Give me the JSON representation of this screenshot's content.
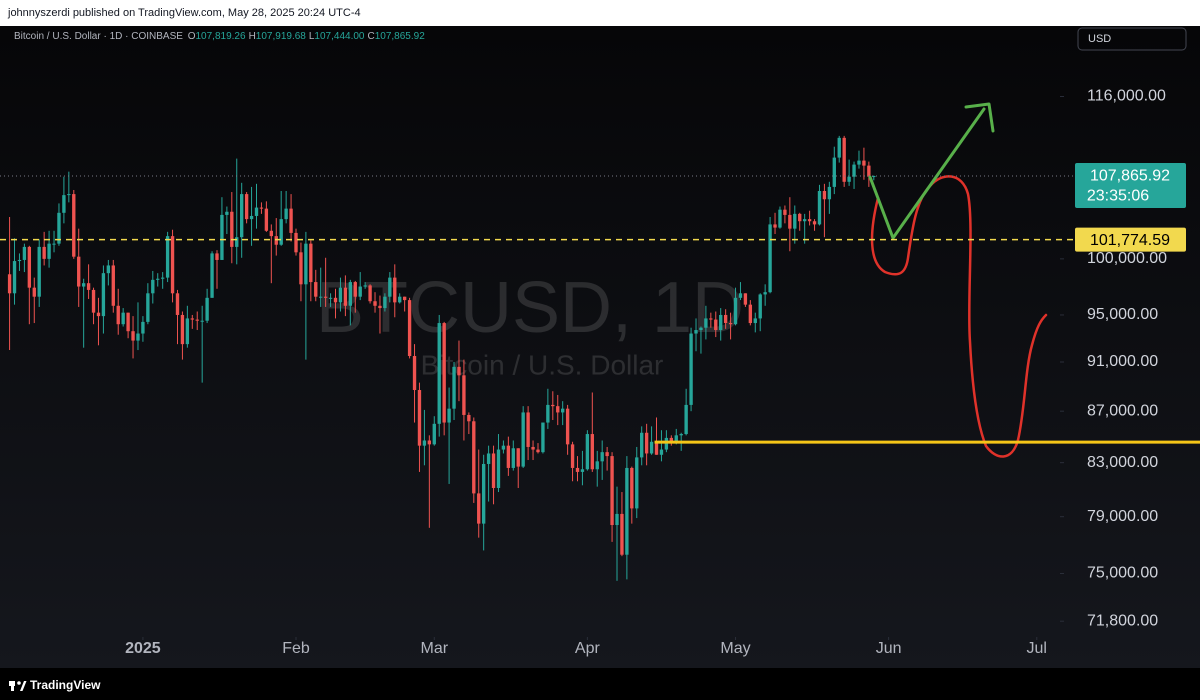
{
  "chart_data": {
    "type": "candlestick",
    "publisher": "johnnyszerdi published on TradingView.com, May 28, 2025 20:24 UTC-4",
    "symbol_description": "Bitcoin / U.S. Dollar · 1D · COINBASE",
    "header_letters": [
      "O",
      "H",
      "L",
      "C"
    ],
    "header_values": [
      "107,819.26",
      "107,919.68",
      "107,444.00",
      "107,865.92"
    ],
    "watermark": "BTCUSD, 1D",
    "watermark_subtitle": "Bitcoin / U.S. Dollar",
    "currency": "USD",
    "brand": "TradingView",
    "up_color": "#26a69a",
    "down_color": "#ef5350",
    "open": [
      98600,
      96900,
      99800,
      99900,
      101100,
      97400,
      96600,
      101100,
      100000,
      101400,
      101400,
      104300,
      106000,
      106100,
      100200,
      97500,
      97800,
      97200,
      95200,
      94900,
      98700,
      99400,
      95800,
      94200,
      95200,
      93600,
      92800,
      93400,
      94400,
      96900,
      98100,
      98200,
      98300,
      102100,
      96900,
      95000,
      92500,
      94700,
      94600,
      94500,
      94500,
      96500,
      100500,
      99900,
      104100,
      104400,
      101100,
      102000,
      106100,
      103700,
      104000,
      104800,
      104700,
      102600,
      102100,
      101300,
      103700,
      104700,
      102400,
      100600,
      97700,
      101400,
      97900,
      96600,
      96600,
      96500,
      96500,
      96100,
      97400,
      95800,
      97900,
      96600,
      97500,
      97600,
      96200,
      95800,
      95600,
      96600,
      98300,
      96100,
      96600,
      96300,
      91500,
      88700,
      84300,
      84700,
      84400,
      86000,
      94300,
      86100,
      87200,
      90600,
      89900,
      86700,
      86200,
      80700,
      78500,
      82900,
      83700,
      81100,
      84000,
      84300,
      82600,
      84100,
      82700,
      86900,
      84200,
      84000,
      83800,
      86100,
      87500,
      87400,
      86900,
      87200,
      84400,
      82600,
      82300,
      82500,
      85200,
      82500,
      83100,
      83800,
      83500,
      78400,
      79200,
      76300,
      82600,
      79600,
      83400,
      85300,
      83700,
      84600,
      83600,
      84000,
      84900,
      84500,
      85100,
      85200,
      87500,
      93400,
      93700,
      93900,
      94700,
      94600,
      93700,
      95000,
      94300,
      94200,
      96500,
      96900,
      95900,
      94300,
      94700,
      96800,
      97000,
      103200,
      102900,
      104600,
      104100,
      102800,
      104200,
      103500,
      103700,
      103500,
      103200,
      106400,
      105600,
      106800,
      109700,
      111700,
      107300,
      107800,
      109000,
      109400,
      108900,
      107819.26
    ],
    "high": [
      103900,
      101900,
      100500,
      101400,
      101200,
      98300,
      101800,
      102500,
      102600,
      102600,
      105200,
      107800,
      108300,
      106500,
      102800,
      98200,
      99500,
      97400,
      96500,
      99400,
      99900,
      99900,
      97300,
      95600,
      95200,
      94900,
      96100,
      94900,
      97800,
      98900,
      98700,
      98800,
      102500,
      102700,
      97200,
      95300,
      95800,
      95000,
      95300,
      95800,
      97300,
      100700,
      100800,
      105800,
      104900,
      106300,
      109600,
      107200,
      106300,
      106800,
      107100,
      105300,
      105400,
      103200,
      103800,
      106400,
      106400,
      106100,
      102800,
      101500,
      102500,
      101700,
      99000,
      99200,
      100100,
      96900,
      97300,
      98300,
      98500,
      98100,
      98000,
      98800,
      97900,
      97700,
      97000,
      96700,
      96900,
      98800,
      99500,
      96900,
      96600,
      96500,
      92500,
      89300,
      87100,
      85100,
      86600,
      95000,
      94400,
      88900,
      91000,
      92800,
      91200,
      86900,
      86500,
      84000,
      83600,
      84300,
      84300,
      85200,
      84700,
      85000,
      84700,
      84100,
      87400,
      87400,
      84700,
      84500,
      86100,
      88800,
      88600,
      88300,
      87800,
      87500,
      84600,
      83500,
      83900,
      85500,
      88500,
      83900,
      84700,
      84200,
      83800,
      81200,
      80800,
      83500,
      82700,
      84200,
      85800,
      86000,
      85800,
      86500,
      85500,
      85500,
      85100,
      85600,
      85300,
      88800,
      93900,
      94700,
      94000,
      95800,
      95200,
      95300,
      95600,
      95500,
      95200,
      97400,
      97900,
      96900,
      96300,
      95200,
      96900,
      97700,
      103900,
      104300,
      104900,
      105000,
      105800,
      105000,
      104300,
      104200,
      104500,
      103700,
      107000,
      107100,
      107300,
      110800,
      111900,
      111900,
      109500,
      109300,
      110400,
      110700,
      109300,
      107919.68
    ],
    "low": [
      92000,
      95900,
      98900,
      98800,
      94200,
      94300,
      95700,
      99400,
      99200,
      100600,
      101200,
      103300,
      105300,
      100000,
      95700,
      92200,
      96400,
      94200,
      92400,
      93400,
      97600,
      95200,
      93300,
      94000,
      93000,
      91300,
      92000,
      92700,
      94200,
      96000,
      97500,
      97300,
      97900,
      96100,
      92500,
      91200,
      92200,
      93800,
      93700,
      89300,
      94300,
      96500,
      97300,
      99900,
      102300,
      99600,
      99500,
      100100,
      103300,
      101200,
      102800,
      104200,
      102500,
      97800,
      100300,
      101200,
      103300,
      101600,
      100300,
      96200,
      91200,
      96200,
      96200,
      95700,
      95700,
      95700,
      94700,
      95300,
      94900,
      94100,
      95200,
      96300,
      97300,
      96000,
      95200,
      93400,
      95300,
      96100,
      94800,
      96000,
      95300,
      91300,
      86100,
      82300,
      82800,
      78200,
      84300,
      85000,
      85100,
      81400,
      86300,
      87800,
      84700,
      85200,
      80000,
      77500,
      76600,
      80100,
      79900,
      80800,
      83700,
      82000,
      82400,
      81100,
      82600,
      83200,
      83200,
      83700,
      83700,
      85600,
      86300,
      85900,
      85900,
      83600,
      81600,
      81600,
      81300,
      82400,
      82300,
      81200,
      81700,
      82400,
      77200,
      74500,
      76200,
      74600,
      78500,
      78900,
      82800,
      82800,
      83600,
      83600,
      83100,
      83800,
      84300,
      84400,
      83900,
      85100,
      87000,
      91900,
      91700,
      92900,
      93900,
      93100,
      92800,
      93800,
      92900,
      94100,
      96300,
      95700,
      94100,
      93500,
      93600,
      95800,
      96900,
      102300,
      102800,
      103300,
      100700,
      101400,
      102600,
      101400,
      103100,
      102600,
      103100,
      102000,
      104200,
      106100,
      109200,
      106800,
      106900,
      106600,
      108600,
      107500,
      106800,
      107444
    ],
    "close": [
      96900,
      99800,
      99900,
      101100,
      97400,
      96600,
      101100,
      100000,
      101400,
      101400,
      104300,
      106000,
      106100,
      100200,
      97500,
      97800,
      97200,
      95200,
      94900,
      98700,
      99400,
      95800,
      94200,
      95200,
      93600,
      92800,
      93400,
      94400,
      96900,
      98100,
      98200,
      98300,
      102100,
      96900,
      95000,
      92500,
      94700,
      94600,
      94500,
      94500,
      96500,
      100500,
      99900,
      104100,
      104400,
      101100,
      102000,
      106100,
      103700,
      104000,
      104800,
      104700,
      102600,
      102100,
      101300,
      103700,
      104700,
      102400,
      100600,
      97700,
      101400,
      97900,
      96600,
      96600,
      96500,
      96500,
      96100,
      97400,
      95800,
      97900,
      96600,
      97500,
      97600,
      96200,
      95800,
      95600,
      96600,
      98300,
      96100,
      96600,
      96300,
      91500,
      88700,
      84300,
      84700,
      84400,
      86000,
      94300,
      86100,
      87200,
      90600,
      89900,
      86700,
      86200,
      80700,
      78500,
      82900,
      83700,
      81100,
      84000,
      84300,
      82600,
      84100,
      82700,
      86900,
      84200,
      84000,
      83800,
      86100,
      87500,
      87400,
      86900,
      87200,
      84400,
      82600,
      82300,
      82500,
      85200,
      82500,
      83100,
      83800,
      83500,
      78400,
      79200,
      76300,
      82600,
      79600,
      83400,
      85300,
      83700,
      84600,
      83600,
      84000,
      84900,
      84500,
      85100,
      85200,
      87500,
      93400,
      93700,
      93900,
      94700,
      94600,
      93700,
      95000,
      94300,
      94200,
      96500,
      96900,
      95900,
      94300,
      94700,
      96800,
      97000,
      103200,
      102900,
      104600,
      104100,
      102800,
      104200,
      103500,
      103700,
      103500,
      103200,
      106400,
      105600,
      106800,
      109700,
      111700,
      107300,
      107800,
      109000,
      109400,
      108900,
      107800,
      107865.92
    ],
    "xlim": [
      -1.94,
      212.3
    ],
    "xticks": [
      {
        "value": 27,
        "label": "2025"
      },
      {
        "value": 58,
        "label": "Feb"
      },
      {
        "value": 86,
        "label": "Mar"
      },
      {
        "value": 117,
        "label": "Apr"
      },
      {
        "value": 147,
        "label": "May"
      },
      {
        "value": 178,
        "label": "Jun"
      },
      {
        "value": 208,
        "label": "Jul"
      }
    ],
    "ylim": [
      70900,
      123500
    ],
    "log_scale": true,
    "yticks": [
      {
        "value": 71800,
        "label": "71,800.00"
      },
      {
        "value": 75000,
        "label": "75,000.00"
      },
      {
        "value": 79000,
        "label": "79,000.00"
      },
      {
        "value": 83000,
        "label": "83,000.00"
      },
      {
        "value": 87000,
        "label": "87,000.00"
      },
      {
        "value": 91000,
        "label": "91,000.00"
      },
      {
        "value": 95000,
        "label": "95,000.00"
      },
      {
        "value": 100000,
        "label": "100,000.00"
      },
      {
        "value": 116000,
        "label": "116,000.00"
      }
    ],
    "last_price_label": "107,865.92",
    "countdown": "23:35:06",
    "levels": [
      {
        "value": 101774.59,
        "label": "101,774.59",
        "style": "dashed",
        "color": "#f2d94e"
      },
      {
        "value": 84570,
        "style": "solid",
        "color": "#f5c518",
        "from": 130.6
      }
    ]
  }
}
